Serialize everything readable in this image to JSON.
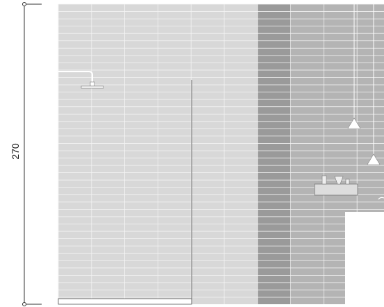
{
  "dimension": {
    "label": "270"
  }
}
